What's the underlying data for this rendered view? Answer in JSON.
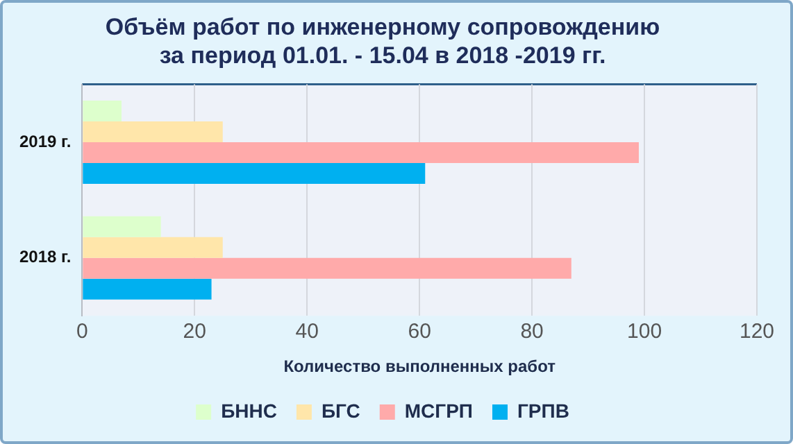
{
  "chart_data": {
    "type": "bar",
    "orientation": "horizontal",
    "title": "Объём работ по инженерному сопровождению\nза период 01.01. - 15.04 в 2018 -2019 гг.",
    "xlabel": "Количество выполненных работ",
    "categories": [
      "2019 г.",
      "2018 г."
    ],
    "series": [
      {
        "name": "БННС",
        "color": "#ddffcc",
        "values": [
          7,
          14
        ]
      },
      {
        "name": "БГС",
        "color": "#ffe6aa",
        "values": [
          25,
          25
        ]
      },
      {
        "name": "МСГРП",
        "color": "#ffaaaa",
        "values": [
          99,
          87
        ]
      },
      {
        "name": "ГРПВ",
        "color": "#00b0f0",
        "values": [
          61,
          23
        ]
      }
    ],
    "xlim": [
      0,
      120
    ],
    "xticks": [
      0,
      20,
      40,
      60,
      80,
      100,
      120
    ],
    "grid": "x",
    "legend": "bottom"
  }
}
